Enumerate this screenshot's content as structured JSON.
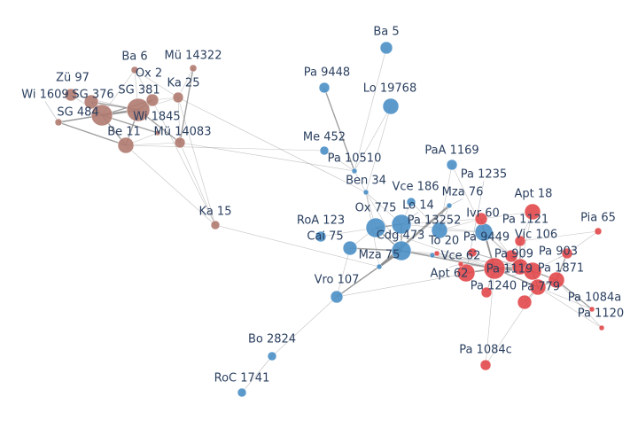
{
  "chart_data": {
    "type": "network",
    "groups": {
      "brown": "#b07a70",
      "blue": "#4a8fc7",
      "red": "#e2484a"
    },
    "edge_color": "#888888",
    "nodes": [
      {
        "label": "Ba 6",
        "group": "brown"
      },
      {
        "label": "Mü 14322",
        "group": "brown"
      },
      {
        "label": "Zü 97",
        "group": "brown"
      },
      {
        "label": "SG 376",
        "group": "brown"
      },
      {
        "label": "SG 484",
        "group": "brown"
      },
      {
        "label": "SG 381",
        "group": "brown"
      },
      {
        "label": "Ox 2",
        "group": "brown"
      },
      {
        "label": "Ka 25",
        "group": "brown"
      },
      {
        "label": "Wi 1609",
        "group": "brown"
      },
      {
        "label": "Wi 1845",
        "group": "brown"
      },
      {
        "label": "Be 11",
        "group": "brown"
      },
      {
        "label": "Mü 14083",
        "group": "brown"
      },
      {
        "label": "Ka 15",
        "group": "brown"
      },
      {
        "label": "Ba 5",
        "group": "blue"
      },
      {
        "label": "Pa 9448",
        "group": "blue"
      },
      {
        "label": "Lo 19768",
        "group": "blue"
      },
      {
        "label": "Me 452",
        "group": "blue"
      },
      {
        "label": "Pa 10510",
        "group": "blue"
      },
      {
        "label": "PaA 1169",
        "group": "blue"
      },
      {
        "label": "Ben 34",
        "group": "blue"
      },
      {
        "label": "Vce 186",
        "group": "blue"
      },
      {
        "label": "Mza 76",
        "group": "blue"
      },
      {
        "label": "Ox 775",
        "group": "blue"
      },
      {
        "label": "Lo 14",
        "group": "blue"
      },
      {
        "label": "Pa 13252",
        "group": "blue"
      },
      {
        "label": "RoA 123",
        "group": "blue"
      },
      {
        "label": "Cai 75",
        "group": "blue"
      },
      {
        "label": "Cdg 473",
        "group": "blue"
      },
      {
        "label": "To 20",
        "group": "blue"
      },
      {
        "label": "Pa 9449",
        "group": "blue"
      },
      {
        "label": "Mza 75",
        "group": "blue"
      },
      {
        "label": "Vro 107",
        "group": "blue"
      },
      {
        "label": "Bo 2824",
        "group": "blue"
      },
      {
        "label": "RoC 1741",
        "group": "blue"
      },
      {
        "label": "Apt 18",
        "group": "red"
      },
      {
        "label": "Pia 65",
        "group": "red"
      },
      {
        "label": "Ivr 60",
        "group": "red"
      },
      {
        "label": "Pa 1235",
        "group": "red"
      },
      {
        "label": "Pa 1121",
        "group": "red"
      },
      {
        "label": "Vic 106",
        "group": "red"
      },
      {
        "label": "Pa 903",
        "group": "red"
      },
      {
        "label": "Pa 909",
        "group": "red"
      },
      {
        "label": "Pa 1871",
        "group": "red"
      },
      {
        "label": "Pa 1119",
        "group": "red"
      },
      {
        "label": "Pa 1240",
        "group": "red"
      },
      {
        "label": "Pa 779",
        "group": "red"
      },
      {
        "label": "Pa 1084a",
        "group": "red"
      },
      {
        "label": "Pa 1120",
        "group": "red"
      },
      {
        "label": "Pa 1084c",
        "group": "red"
      },
      {
        "label": "Vce 62",
        "group": "red"
      },
      {
        "label": "Apt 62",
        "group": "red"
      }
    ],
    "edges": [
      [
        0,
        5,
        1
      ],
      [
        0,
        4,
        1
      ],
      [
        0,
        7,
        1
      ],
      [
        0,
        6,
        1
      ],
      [
        1,
        11,
        2
      ],
      [
        1,
        7,
        1
      ],
      [
        2,
        4,
        1
      ],
      [
        2,
        5,
        1
      ],
      [
        3,
        4,
        2
      ],
      [
        3,
        5,
        2
      ],
      [
        4,
        5,
        3
      ],
      [
        4,
        10,
        2
      ],
      [
        4,
        6,
        2
      ],
      [
        4,
        8,
        2
      ],
      [
        5,
        6,
        2
      ],
      [
        5,
        7,
        1
      ],
      [
        5,
        10,
        2
      ],
      [
        5,
        11,
        2
      ],
      [
        6,
        7,
        1
      ],
      [
        7,
        11,
        1
      ],
      [
        8,
        10,
        2
      ],
      [
        8,
        5,
        1
      ],
      [
        9,
        10,
        1
      ],
      [
        9,
        4,
        2
      ],
      [
        10,
        11,
        1
      ],
      [
        11,
        12,
        1
      ],
      [
        10,
        12,
        1
      ],
      [
        6,
        12,
        1
      ],
      [
        7,
        12,
        1
      ],
      [
        11,
        17,
        1
      ],
      [
        10,
        16,
        1
      ],
      [
        12,
        30,
        1
      ],
      [
        7,
        19,
        1
      ],
      [
        13,
        17,
        1
      ],
      [
        14,
        17,
        2
      ],
      [
        15,
        17,
        1
      ],
      [
        16,
        17,
        1
      ],
      [
        17,
        19,
        1
      ],
      [
        15,
        19,
        1
      ],
      [
        19,
        22,
        1
      ],
      [
        19,
        23,
        1
      ],
      [
        19,
        27,
        1
      ],
      [
        19,
        30,
        1
      ],
      [
        22,
        23,
        2
      ],
      [
        22,
        27,
        2
      ],
      [
        23,
        27,
        2
      ],
      [
        27,
        30,
        3
      ],
      [
        30,
        21,
        3
      ],
      [
        21,
        24,
        1
      ],
      [
        24,
        29,
        1
      ],
      [
        20,
        23,
        1
      ],
      [
        18,
        24,
        1
      ],
      [
        18,
        29,
        1
      ],
      [
        25,
        22,
        1
      ],
      [
        26,
        22,
        1
      ],
      [
        26,
        27,
        2
      ],
      [
        31,
        30,
        1
      ],
      [
        31,
        27,
        2
      ],
      [
        31,
        44,
        1
      ],
      [
        31,
        32,
        1
      ],
      [
        32,
        33,
        1
      ],
      [
        31,
        26,
        1
      ],
      [
        29,
        44,
        2
      ],
      [
        27,
        44,
        2
      ],
      [
        23,
        36,
        1
      ],
      [
        24,
        36,
        1
      ],
      [
        22,
        44,
        1
      ],
      [
        27,
        41,
        1
      ],
      [
        23,
        29,
        1
      ],
      [
        20,
        24,
        1
      ],
      [
        28,
        44,
        1
      ],
      [
        28,
        27,
        1
      ],
      [
        49,
        27,
        1
      ],
      [
        34,
        36,
        1
      ],
      [
        34,
        41,
        1
      ],
      [
        34,
        38,
        1
      ],
      [
        35,
        40,
        1
      ],
      [
        35,
        38,
        1
      ],
      [
        36,
        44,
        2
      ],
      [
        36,
        29,
        1
      ],
      [
        37,
        44,
        2
      ],
      [
        37,
        41,
        1
      ],
      [
        38,
        39,
        1
      ],
      [
        38,
        41,
        2
      ],
      [
        39,
        41,
        2
      ],
      [
        39,
        43,
        2
      ],
      [
        40,
        42,
        2
      ],
      [
        40,
        43,
        1
      ],
      [
        41,
        43,
        3
      ],
      [
        41,
        44,
        2
      ],
      [
        42,
        43,
        2
      ],
      [
        42,
        45,
        2
      ],
      [
        43,
        44,
        3
      ],
      [
        43,
        45,
        2
      ],
      [
        44,
        45,
        2
      ],
      [
        44,
        50,
        1
      ],
      [
        44,
        49,
        1
      ],
      [
        45,
        46,
        1
      ],
      [
        42,
        46,
        2
      ],
      [
        42,
        47,
        1
      ],
      [
        45,
        47,
        1
      ],
      [
        48,
        44,
        1
      ],
      [
        48,
        45,
        1
      ],
      [
        29,
        41,
        1
      ],
      [
        29,
        39,
        1
      ],
      [
        36,
        39,
        1
      ],
      [
        50,
        43,
        1
      ],
      [
        49,
        41,
        1
      ]
    ]
  }
}
